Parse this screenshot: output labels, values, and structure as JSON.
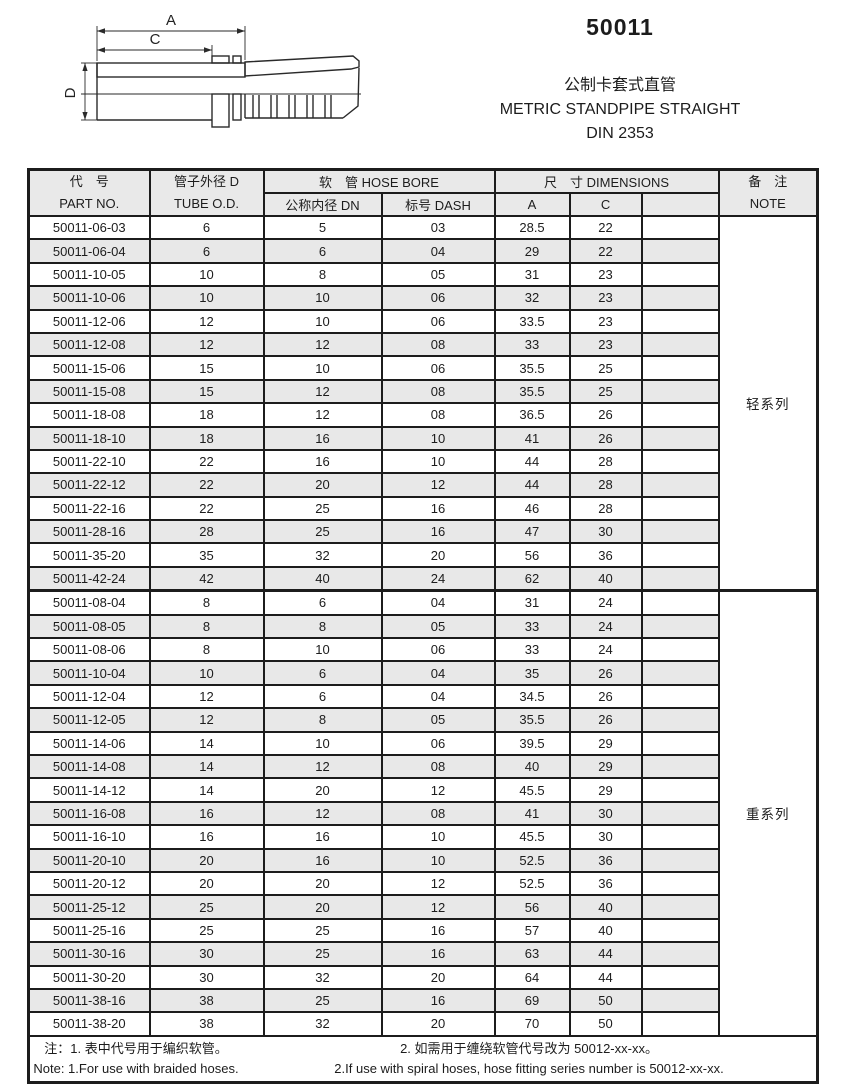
{
  "header": {
    "code": "50011",
    "title_cn": "公制卡套式直管",
    "title_en": "METRIC STANDPIPE STRAIGHT",
    "standard": "DIN 2353"
  },
  "diagram": {
    "dim_a": "A",
    "dim_c": "C",
    "dim_d": "D"
  },
  "table": {
    "head": {
      "part_cn": "代　号",
      "part_en": "PART NO.",
      "tube_cn": "管子外径 D",
      "tube_en": "TUBE O.D.",
      "hose_bore": "软　管 HOSE BORE",
      "dn": "公称内径 DN",
      "dash": "标号 DASH",
      "dims": "尺　寸 DIMENSIONS",
      "a": "A",
      "c": "C",
      "blank": "",
      "note_cn": "备　注",
      "note_en": "NOTE"
    },
    "groups": [
      {
        "series_note": "轻系列",
        "rows": [
          {
            "part": "50011-06-03",
            "od": "6",
            "dn": "5",
            "dash": "03",
            "a": "28.5",
            "c": "22"
          },
          {
            "part": "50011-06-04",
            "od": "6",
            "dn": "6",
            "dash": "04",
            "a": "29",
            "c": "22"
          },
          {
            "part": "50011-10-05",
            "od": "10",
            "dn": "8",
            "dash": "05",
            "a": "31",
            "c": "23"
          },
          {
            "part": "50011-10-06",
            "od": "10",
            "dn": "10",
            "dash": "06",
            "a": "32",
            "c": "23"
          },
          {
            "part": "50011-12-06",
            "od": "12",
            "dn": "10",
            "dash": "06",
            "a": "33.5",
            "c": "23"
          },
          {
            "part": "50011-12-08",
            "od": "12",
            "dn": "12",
            "dash": "08",
            "a": "33",
            "c": "23"
          },
          {
            "part": "50011-15-06",
            "od": "15",
            "dn": "10",
            "dash": "06",
            "a": "35.5",
            "c": "25"
          },
          {
            "part": "50011-15-08",
            "od": "15",
            "dn": "12",
            "dash": "08",
            "a": "35.5",
            "c": "25"
          },
          {
            "part": "50011-18-08",
            "od": "18",
            "dn": "12",
            "dash": "08",
            "a": "36.5",
            "c": "26"
          },
          {
            "part": "50011-18-10",
            "od": "18",
            "dn": "16",
            "dash": "10",
            "a": "41",
            "c": "26"
          },
          {
            "part": "50011-22-10",
            "od": "22",
            "dn": "16",
            "dash": "10",
            "a": "44",
            "c": "28"
          },
          {
            "part": "50011-22-12",
            "od": "22",
            "dn": "20",
            "dash": "12",
            "a": "44",
            "c": "28"
          },
          {
            "part": "50011-22-16",
            "od": "22",
            "dn": "25",
            "dash": "16",
            "a": "46",
            "c": "28"
          },
          {
            "part": "50011-28-16",
            "od": "28",
            "dn": "25",
            "dash": "16",
            "a": "47",
            "c": "30"
          },
          {
            "part": "50011-35-20",
            "od": "35",
            "dn": "32",
            "dash": "20",
            "a": "56",
            "c": "36"
          },
          {
            "part": "50011-42-24",
            "od": "42",
            "dn": "40",
            "dash": "24",
            "a": "62",
            "c": "40"
          }
        ]
      },
      {
        "series_note": "重系列",
        "rows": [
          {
            "part": "50011-08-04",
            "od": "8",
            "dn": "6",
            "dash": "04",
            "a": "31",
            "c": "24"
          },
          {
            "part": "50011-08-05",
            "od": "8",
            "dn": "8",
            "dash": "05",
            "a": "33",
            "c": "24"
          },
          {
            "part": "50011-08-06",
            "od": "8",
            "dn": "10",
            "dash": "06",
            "a": "33",
            "c": "24"
          },
          {
            "part": "50011-10-04",
            "od": "10",
            "dn": "6",
            "dash": "04",
            "a": "35",
            "c": "26"
          },
          {
            "part": "50011-12-04",
            "od": "12",
            "dn": "6",
            "dash": "04",
            "a": "34.5",
            "c": "26"
          },
          {
            "part": "50011-12-05",
            "od": "12",
            "dn": "8",
            "dash": "05",
            "a": "35.5",
            "c": "26"
          },
          {
            "part": "50011-14-06",
            "od": "14",
            "dn": "10",
            "dash": "06",
            "a": "39.5",
            "c": "29"
          },
          {
            "part": "50011-14-08",
            "od": "14",
            "dn": "12",
            "dash": "08",
            "a": "40",
            "c": "29"
          },
          {
            "part": "50011-14-12",
            "od": "14",
            "dn": "20",
            "dash": "12",
            "a": "45.5",
            "c": "29"
          },
          {
            "part": "50011-16-08",
            "od": "16",
            "dn": "12",
            "dash": "08",
            "a": "41",
            "c": "30"
          },
          {
            "part": "50011-16-10",
            "od": "16",
            "dn": "16",
            "dash": "10",
            "a": "45.5",
            "c": "30"
          },
          {
            "part": "50011-20-10",
            "od": "20",
            "dn": "16",
            "dash": "10",
            "a": "52.5",
            "c": "36"
          },
          {
            "part": "50011-20-12",
            "od": "20",
            "dn": "20",
            "dash": "12",
            "a": "52.5",
            "c": "36"
          },
          {
            "part": "50011-25-12",
            "od": "25",
            "dn": "20",
            "dash": "12",
            "a": "56",
            "c": "40"
          },
          {
            "part": "50011-25-16",
            "od": "25",
            "dn": "25",
            "dash": "16",
            "a": "57",
            "c": "40"
          },
          {
            "part": "50011-30-16",
            "od": "30",
            "dn": "25",
            "dash": "16",
            "a": "63",
            "c": "44"
          },
          {
            "part": "50011-30-20",
            "od": "30",
            "dn": "32",
            "dash": "20",
            "a": "64",
            "c": "44"
          },
          {
            "part": "50011-38-16",
            "od": "38",
            "dn": "25",
            "dash": "16",
            "a": "69",
            "c": "50"
          },
          {
            "part": "50011-38-20",
            "od": "38",
            "dn": "32",
            "dash": "20",
            "a": "70",
            "c": "50"
          }
        ]
      }
    ]
  },
  "footer": {
    "cn_1": "注：1. 表中代号用于编织软管。",
    "cn_2": "2. 如需用于缠绕软管代号改为 50012-xx-xx。",
    "en_1": "Note: 1.For use with braided hoses.",
    "en_2": "2.If use with spiral hoses, hose fitting series number is 50012-xx-xx."
  },
  "colors": {
    "stripe": "#e8e8e8",
    "header_bg": "#e9e9e9",
    "border": "#1c1c1c",
    "ink": "#1c1c1c"
  }
}
